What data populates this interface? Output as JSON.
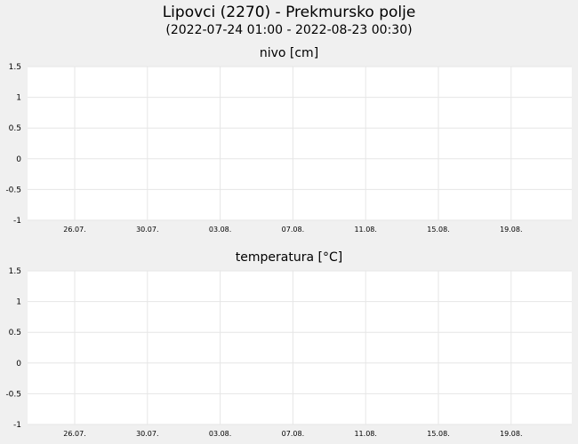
{
  "title": "Lipovci (2270) - Prekmursko polje",
  "subtitle": "(2022-07-24 01:00 - 2022-08-23 00:30)",
  "colors": {
    "background": "#f0f0f0",
    "plot_area": "#ffffff",
    "grid": "#e6e6e6"
  },
  "chart_data": [
    {
      "type": "line",
      "title": "nivo [cm]",
      "xlabel": "",
      "ylabel": "",
      "ylim": [
        -1,
        1.5
      ],
      "yticks": [
        "1.5",
        "1",
        "0.5",
        "0",
        "-0.5",
        "-1"
      ],
      "xticks": [
        "26.07.",
        "30.07.",
        "03.08.",
        "07.08.",
        "11.08.",
        "15.08.",
        "19.08."
      ],
      "series": [],
      "grid": true
    },
    {
      "type": "line",
      "title": "temperatura [°C]",
      "xlabel": "",
      "ylabel": "",
      "ylim": [
        -1,
        1.5
      ],
      "yticks": [
        "1.5",
        "1",
        "0.5",
        "0",
        "-0.5",
        "-1"
      ],
      "xticks": [
        "26.07.",
        "30.07.",
        "03.08.",
        "07.08.",
        "11.08.",
        "15.08.",
        "19.08."
      ],
      "series": [],
      "grid": true
    }
  ]
}
